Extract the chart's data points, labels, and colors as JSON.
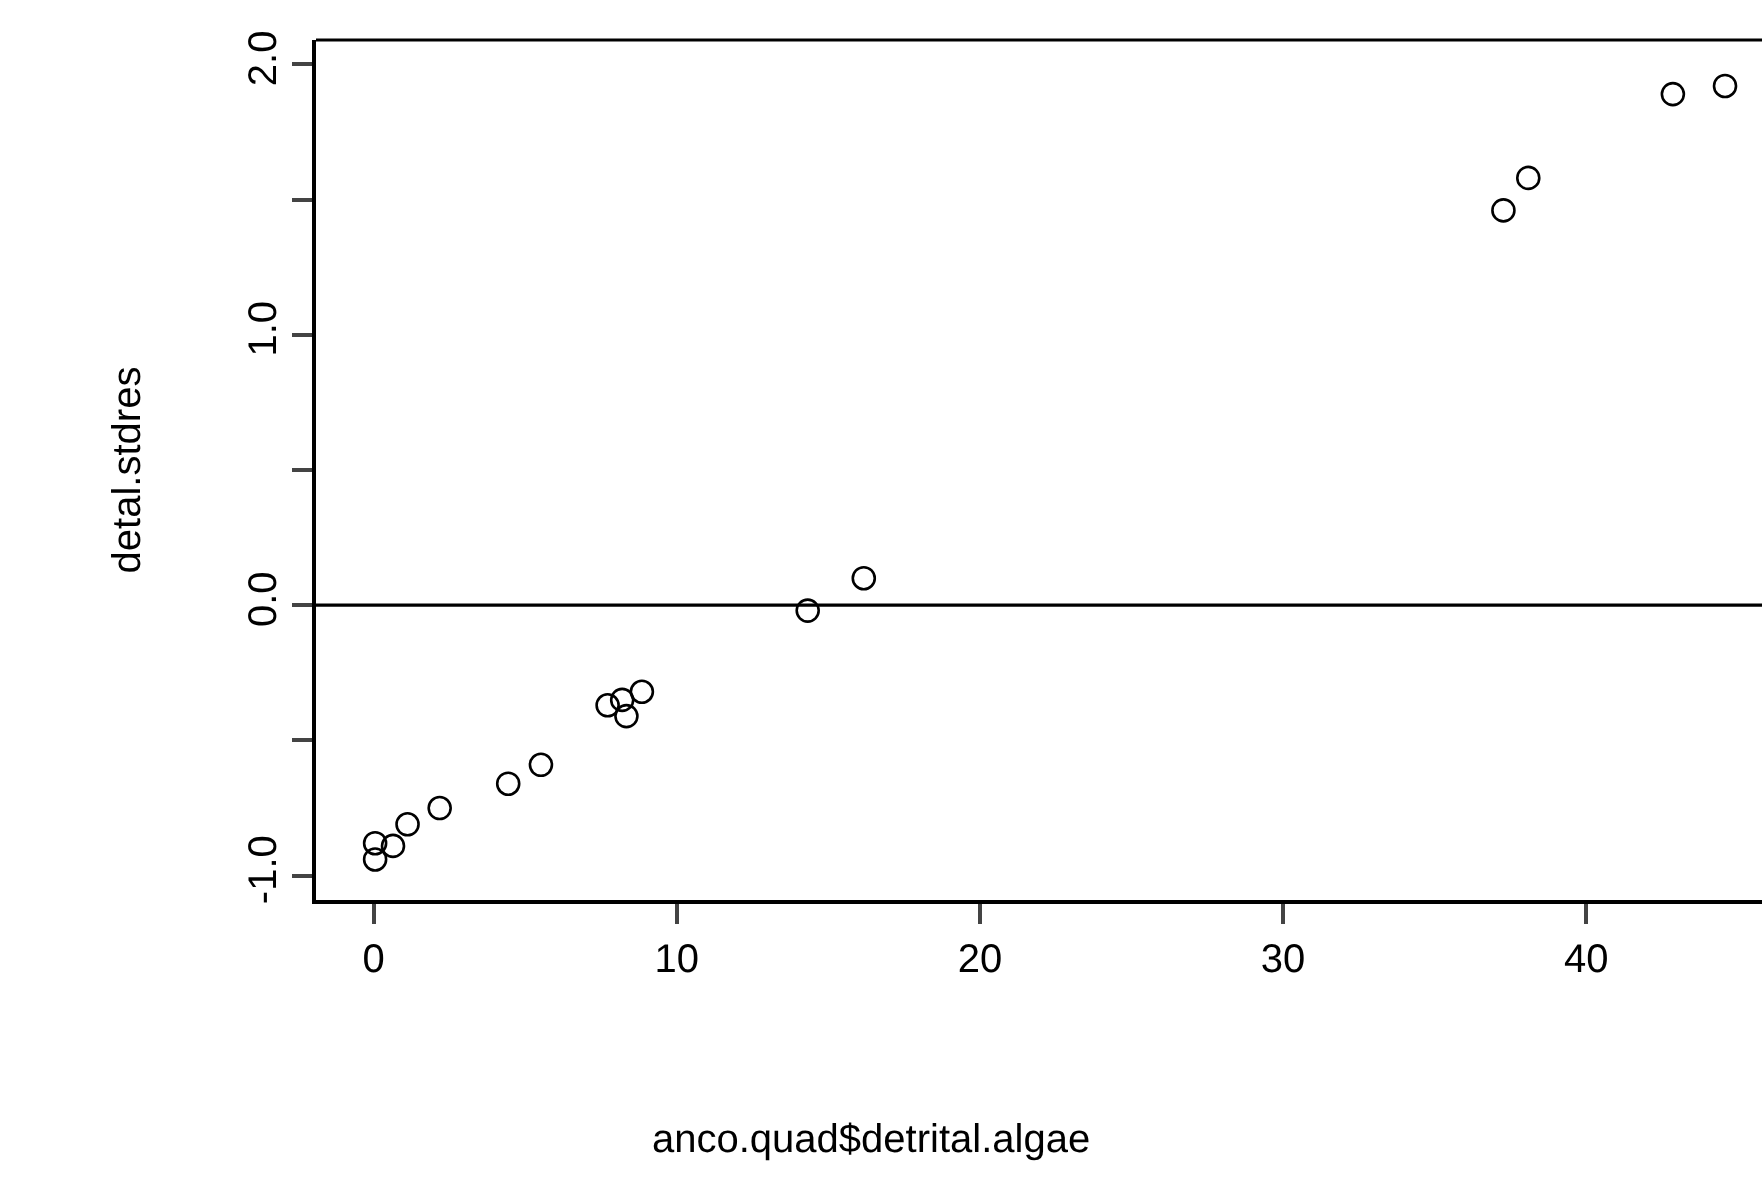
{
  "chart_data": {
    "type": "scatter",
    "xlabel": "anco.quad$detrital.algae",
    "ylabel": "detal.stdres",
    "x": [
      0.05,
      0.05,
      0.64,
      1.12,
      2.18,
      4.44,
      5.52,
      7.72,
      8.2,
      8.34,
      8.85,
      14.32,
      16.17,
      37.27,
      38.09,
      42.86,
      44.58
    ],
    "series": [
      {
        "color": "#000000",
        "values": [
          -0.88,
          -0.94,
          -0.89,
          -0.81,
          -0.75,
          -0.66,
          -0.59,
          -0.37,
          -0.35,
          -0.41,
          -0.32,
          -0.02,
          0.1,
          1.46,
          1.58,
          1.89,
          1.92
        ]
      }
    ],
    "xlim": [
      -1.9,
      45.8
    ],
    "ylim": [
      -1.09,
      2.09
    ],
    "xticks": [
      0,
      10,
      20,
      30,
      40
    ],
    "yticks": [
      {
        "value": -1.0,
        "label": "-1.0"
      },
      {
        "value": -0.5,
        "label": null
      },
      {
        "value": 0.0,
        "label": "0.0"
      },
      {
        "value": 0.5,
        "label": null
      },
      {
        "value": 1.0,
        "label": "1.0"
      },
      {
        "value": 1.5,
        "label": null
      },
      {
        "value": 2.0,
        "label": "2.0"
      }
    ],
    "ref_lines": [
      {
        "axis": "y",
        "value": 0,
        "color": "#000000",
        "line_style": "solid"
      }
    ],
    "marker": "circle"
  }
}
